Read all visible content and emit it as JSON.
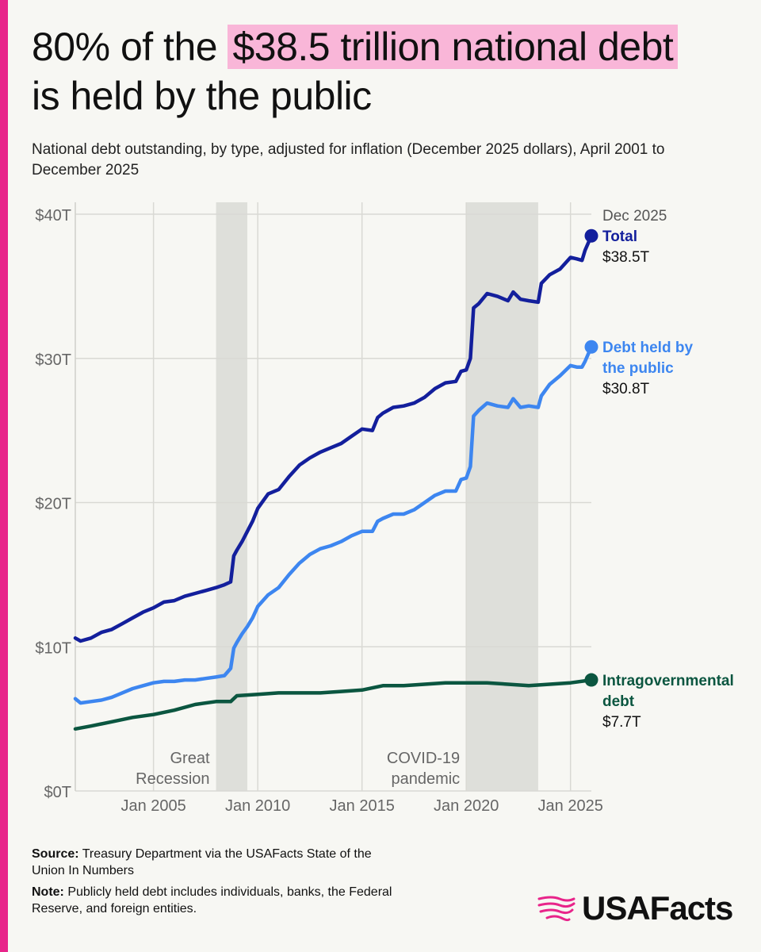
{
  "title": {
    "prefix": "80% of the ",
    "highlight": "$38.5 trillion national debt",
    "suffix": "is held by the public"
  },
  "subtitle": "National debt outstanding, by type, adjusted for inflation (December 2025 dollars), April 2001 to December 2025",
  "colors": {
    "accent_bar": "#e8248a",
    "highlight": "#f9b6d8",
    "total": "#131f9c",
    "public": "#3d86f0",
    "intragovernmental": "#0b5640",
    "shading": "#dedfda"
  },
  "chart_data": {
    "type": "line",
    "title": "National debt outstanding, by type, adjusted for inflation (December 2025 dollars)",
    "xlabel": "",
    "ylabel": "",
    "xlim": [
      2001.25,
      2026.0
    ],
    "ylim": [
      0,
      40
    ],
    "y_ticks": [
      {
        "value": 0,
        "label": "$0T"
      },
      {
        "value": 10,
        "label": "$10T"
      },
      {
        "value": 20,
        "label": "$20T"
      },
      {
        "value": 30,
        "label": "$30T"
      },
      {
        "value": 40,
        "label": "$40T"
      }
    ],
    "x_ticks": [
      {
        "value": 2005,
        "label": "Jan 2005"
      },
      {
        "value": 2010,
        "label": "Jan 2010"
      },
      {
        "value": 2015,
        "label": "Jan 2015"
      },
      {
        "value": 2020,
        "label": "Jan 2020"
      },
      {
        "value": 2025,
        "label": "Jan 2025"
      }
    ],
    "x_gridlines": [
      2005,
      2010,
      2015,
      2020,
      2025
    ],
    "shaded_periods": [
      {
        "start": 2008.0,
        "end": 2009.5,
        "label_lines": [
          "Great",
          "Recession"
        ]
      },
      {
        "start": 2020.0,
        "end": 2023.45,
        "label_lines": [
          "COVID-19",
          "pandemic"
        ]
      }
    ],
    "end_date_label": "Dec 2025",
    "series": [
      {
        "key": "total",
        "name": "Total",
        "label_lines": [
          "Total"
        ],
        "end_value_label": "$38.5T",
        "color": "#131f9c",
        "points": [
          [
            2001.25,
            10.6
          ],
          [
            2001.5,
            10.4
          ],
          [
            2002.0,
            10.6
          ],
          [
            2002.5,
            11.0
          ],
          [
            2003.0,
            11.2
          ],
          [
            2003.5,
            11.6
          ],
          [
            2004.0,
            12.0
          ],
          [
            2004.5,
            12.4
          ],
          [
            2005.0,
            12.7
          ],
          [
            2005.5,
            13.1
          ],
          [
            2006.0,
            13.2
          ],
          [
            2006.5,
            13.5
          ],
          [
            2007.0,
            13.7
          ],
          [
            2007.5,
            13.9
          ],
          [
            2008.0,
            14.1
          ],
          [
            2008.4,
            14.3
          ],
          [
            2008.7,
            14.5
          ],
          [
            2008.85,
            16.3
          ],
          [
            2009.0,
            16.7
          ],
          [
            2009.25,
            17.3
          ],
          [
            2009.5,
            18.0
          ],
          [
            2009.75,
            18.7
          ],
          [
            2010.0,
            19.6
          ],
          [
            2010.25,
            20.1
          ],
          [
            2010.5,
            20.6
          ],
          [
            2011.0,
            20.9
          ],
          [
            2011.5,
            21.8
          ],
          [
            2012.0,
            22.6
          ],
          [
            2012.5,
            23.1
          ],
          [
            2013.0,
            23.5
          ],
          [
            2013.5,
            23.8
          ],
          [
            2014.0,
            24.1
          ],
          [
            2014.5,
            24.6
          ],
          [
            2015.0,
            25.1
          ],
          [
            2015.5,
            25.0
          ],
          [
            2015.75,
            25.9
          ],
          [
            2016.0,
            26.2
          ],
          [
            2016.5,
            26.6
          ],
          [
            2017.0,
            26.7
          ],
          [
            2017.5,
            26.9
          ],
          [
            2018.0,
            27.3
          ],
          [
            2018.5,
            27.9
          ],
          [
            2019.0,
            28.3
          ],
          [
            2019.5,
            28.4
          ],
          [
            2019.75,
            29.1
          ],
          [
            2020.0,
            29.2
          ],
          [
            2020.2,
            30.0
          ],
          [
            2020.35,
            33.5
          ],
          [
            2020.6,
            33.8
          ],
          [
            2021.0,
            34.5
          ],
          [
            2021.5,
            34.3
          ],
          [
            2022.0,
            34.0
          ],
          [
            2022.25,
            34.6
          ],
          [
            2022.6,
            34.1
          ],
          [
            2023.0,
            34.0
          ],
          [
            2023.45,
            33.9
          ],
          [
            2023.6,
            35.2
          ],
          [
            2024.0,
            35.8
          ],
          [
            2024.5,
            36.2
          ],
          [
            2025.0,
            37.0
          ],
          [
            2025.3,
            36.9
          ],
          [
            2025.55,
            36.8
          ],
          [
            2025.7,
            37.5
          ],
          [
            2026.0,
            38.5
          ]
        ]
      },
      {
        "key": "public",
        "name": "Debt held by the public",
        "label_lines": [
          "Debt held by",
          "the public"
        ],
        "end_value_label": "$30.8T",
        "color": "#3d86f0",
        "points": [
          [
            2001.25,
            6.4
          ],
          [
            2001.5,
            6.1
          ],
          [
            2002.0,
            6.2
          ],
          [
            2002.5,
            6.3
          ],
          [
            2003.0,
            6.5
          ],
          [
            2003.5,
            6.8
          ],
          [
            2004.0,
            7.1
          ],
          [
            2004.5,
            7.3
          ],
          [
            2005.0,
            7.5
          ],
          [
            2005.5,
            7.6
          ],
          [
            2006.0,
            7.6
          ],
          [
            2006.5,
            7.7
          ],
          [
            2007.0,
            7.7
          ],
          [
            2007.5,
            7.8
          ],
          [
            2008.0,
            7.9
          ],
          [
            2008.4,
            8.0
          ],
          [
            2008.7,
            8.5
          ],
          [
            2008.85,
            9.9
          ],
          [
            2009.0,
            10.3
          ],
          [
            2009.25,
            10.9
          ],
          [
            2009.5,
            11.4
          ],
          [
            2009.75,
            12.0
          ],
          [
            2010.0,
            12.8
          ],
          [
            2010.5,
            13.6
          ],
          [
            2011.0,
            14.1
          ],
          [
            2011.5,
            15.0
          ],
          [
            2012.0,
            15.8
          ],
          [
            2012.5,
            16.4
          ],
          [
            2013.0,
            16.8
          ],
          [
            2013.5,
            17.0
          ],
          [
            2014.0,
            17.3
          ],
          [
            2014.5,
            17.7
          ],
          [
            2015.0,
            18.0
          ],
          [
            2015.5,
            18.0
          ],
          [
            2015.75,
            18.7
          ],
          [
            2016.0,
            18.9
          ],
          [
            2016.5,
            19.2
          ],
          [
            2017.0,
            19.2
          ],
          [
            2017.5,
            19.5
          ],
          [
            2018.0,
            20.0
          ],
          [
            2018.5,
            20.5
          ],
          [
            2019.0,
            20.8
          ],
          [
            2019.5,
            20.8
          ],
          [
            2019.75,
            21.6
          ],
          [
            2020.0,
            21.7
          ],
          [
            2020.2,
            22.5
          ],
          [
            2020.35,
            26.0
          ],
          [
            2020.6,
            26.4
          ],
          [
            2021.0,
            26.9
          ],
          [
            2021.5,
            26.7
          ],
          [
            2022.0,
            26.6
          ],
          [
            2022.25,
            27.2
          ],
          [
            2022.6,
            26.6
          ],
          [
            2023.0,
            26.7
          ],
          [
            2023.45,
            26.6
          ],
          [
            2023.6,
            27.4
          ],
          [
            2024.0,
            28.2
          ],
          [
            2024.5,
            28.8
          ],
          [
            2025.0,
            29.5
          ],
          [
            2025.3,
            29.4
          ],
          [
            2025.55,
            29.4
          ],
          [
            2025.7,
            29.8
          ],
          [
            2026.0,
            30.8
          ]
        ]
      },
      {
        "key": "intragovernmental",
        "name": "Intragovernmental debt",
        "label_lines": [
          "Intragovernmental",
          "debt"
        ],
        "end_value_label": "$7.7T",
        "color": "#0b5640",
        "points": [
          [
            2001.25,
            4.3
          ],
          [
            2002.0,
            4.5
          ],
          [
            2003.0,
            4.8
          ],
          [
            2004.0,
            5.1
          ],
          [
            2005.0,
            5.3
          ],
          [
            2006.0,
            5.6
          ],
          [
            2007.0,
            6.0
          ],
          [
            2008.0,
            6.2
          ],
          [
            2008.7,
            6.2
          ],
          [
            2009.0,
            6.6
          ],
          [
            2010.0,
            6.7
          ],
          [
            2011.0,
            6.8
          ],
          [
            2012.0,
            6.8
          ],
          [
            2013.0,
            6.8
          ],
          [
            2014.0,
            6.9
          ],
          [
            2015.0,
            7.0
          ],
          [
            2016.0,
            7.3
          ],
          [
            2017.0,
            7.3
          ],
          [
            2018.0,
            7.4
          ],
          [
            2019.0,
            7.5
          ],
          [
            2020.0,
            7.5
          ],
          [
            2021.0,
            7.5
          ],
          [
            2022.0,
            7.4
          ],
          [
            2023.0,
            7.3
          ],
          [
            2024.0,
            7.4
          ],
          [
            2025.0,
            7.5
          ],
          [
            2026.0,
            7.7
          ]
        ]
      }
    ]
  },
  "footer": {
    "source_label": "Source:",
    "source_text": " Treasury Department via the USAFacts State of the Union In Numbers",
    "note_label": "Note:",
    "note_text": " Publicly held debt includes individuals, banks, the Federal Reserve, and foreign entities."
  },
  "logo": {
    "text": "USAFacts",
    "icon": "usa-map-logo-icon"
  }
}
